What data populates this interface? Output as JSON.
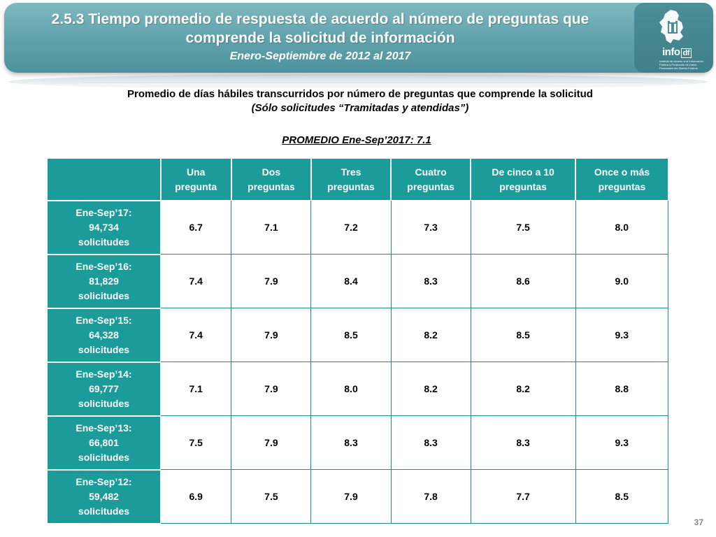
{
  "header": {
    "title_line1": "2.5.3 Tiempo promedio de respuesta de acuerdo al número de preguntas que",
    "title_line2": "comprende la solicitud de información",
    "subtitle": "Enero-Septiembre de 2012 al 2017"
  },
  "logo": {
    "word": "info",
    "suffix": "df",
    "tagline": "Instituto de Acceso a la Información Pública y Protección de Datos Personales del Distrito Federal"
  },
  "heading": {
    "line1": "Promedio de días hábiles transcurridos por número de preguntas que comprende la solicitud",
    "line2": "(Sólo solicitudes “Tramitadas y atendidas”)",
    "promedio": "PROMEDIO Ene-Sep’2017: 7.1"
  },
  "table": {
    "columns": [
      {
        "line1": "Una",
        "line2": "pregunta"
      },
      {
        "line1": "Dos",
        "line2": "preguntas"
      },
      {
        "line1": "Tres",
        "line2": "preguntas"
      },
      {
        "line1": "Cuatro",
        "line2": "preguntas"
      },
      {
        "line1": "De cinco a 10",
        "line2": "preguntas"
      },
      {
        "line1": "Once o más",
        "line2": "preguntas"
      }
    ],
    "rows": [
      {
        "period": "Ene-Sep’17:",
        "count": "94,734",
        "unit": "solicitudes",
        "values": [
          "6.7",
          "7.1",
          "7.2",
          "7.3",
          "7.5",
          "8.0"
        ]
      },
      {
        "period": "Ene-Sep’16:",
        "count": "81,829",
        "unit": "solicitudes",
        "values": [
          "7.4",
          "7.9",
          "8.4",
          "8.3",
          "8.6",
          "9.0"
        ]
      },
      {
        "period": "Ene-Sep’15:",
        "count": "64,328",
        "unit": "solicitudes",
        "values": [
          "7.4",
          "7.9",
          "8.5",
          "8.2",
          "8.5",
          "9.3"
        ]
      },
      {
        "period": "Ene-Sep’14:",
        "count": "69,777",
        "unit": "solicitudes",
        "values": [
          "7.1",
          "7.9",
          "8.0",
          "8.2",
          "8.2",
          "8.8"
        ]
      },
      {
        "period": "Ene-Sep’13:",
        "count": "66,801",
        "unit": "solicitudes",
        "values": [
          "7.5",
          "7.9",
          "8.3",
          "8.3",
          "8.3",
          "9.3"
        ]
      },
      {
        "period": "Ene-Sep’12:",
        "count": "59,482",
        "unit": "solicitudes",
        "values": [
          "6.9",
          "7.5",
          "7.9",
          "7.8",
          "7.7",
          "8.5"
        ]
      }
    ]
  },
  "page_number": "37",
  "colors": {
    "teal": "#1b9b9a",
    "banner": "#5fa1ab"
  }
}
